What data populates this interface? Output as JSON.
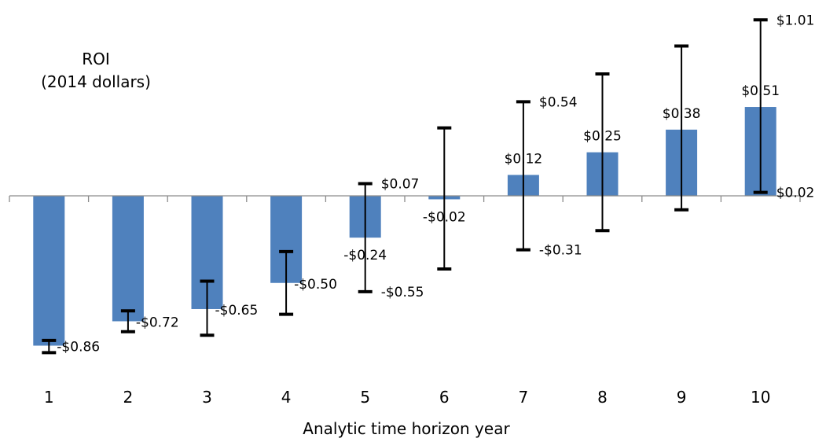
{
  "chart_data": {
    "type": "bar",
    "title": "ROI",
    "subtitle": "(2014 dollars)",
    "xlabel": "Analytic time horizon year",
    "ylabel": "",
    "categories": [
      "1",
      "2",
      "3",
      "4",
      "5",
      "6",
      "7",
      "8",
      "9",
      "10"
    ],
    "values": [
      -0.86,
      -0.72,
      -0.65,
      -0.5,
      -0.24,
      -0.02,
      0.12,
      0.25,
      0.38,
      0.51
    ],
    "value_labels": [
      "-$0.86",
      "-$0.72",
      "-$0.65",
      "-$0.50",
      "-$0.24",
      "-$0.02",
      "$0.12",
      "$0.25",
      "$0.38",
      "$0.51"
    ],
    "error_low": [
      -0.9,
      -0.78,
      -0.8,
      -0.68,
      -0.55,
      -0.42,
      -0.31,
      -0.2,
      -0.08,
      0.02
    ],
    "error_high": [
      -0.83,
      -0.66,
      -0.49,
      -0.32,
      0.07,
      0.39,
      0.54,
      0.7,
      0.86,
      1.01
    ],
    "bound_labels": [
      {
        "index": 0,
        "bound": "low",
        "text": ""
      },
      {
        "index": 4,
        "bound": "high",
        "text": "$0.07"
      },
      {
        "index": 4,
        "bound": "low",
        "text": "-$0.55"
      },
      {
        "index": 6,
        "bound": "high",
        "text": "$0.54"
      },
      {
        "index": 6,
        "bound": "low",
        "text": "-$0.31"
      },
      {
        "index": 9,
        "bound": "high",
        "text": "$1.01"
      },
      {
        "index": 9,
        "bound": "low",
        "text": "$0.02"
      }
    ],
    "ylim": [
      -1.1,
      1.1
    ],
    "grid": false,
    "legend": "none",
    "colors": {
      "bar": "#4f81bd",
      "error_bar": "#000000",
      "axis": "#8c8c8c"
    }
  }
}
